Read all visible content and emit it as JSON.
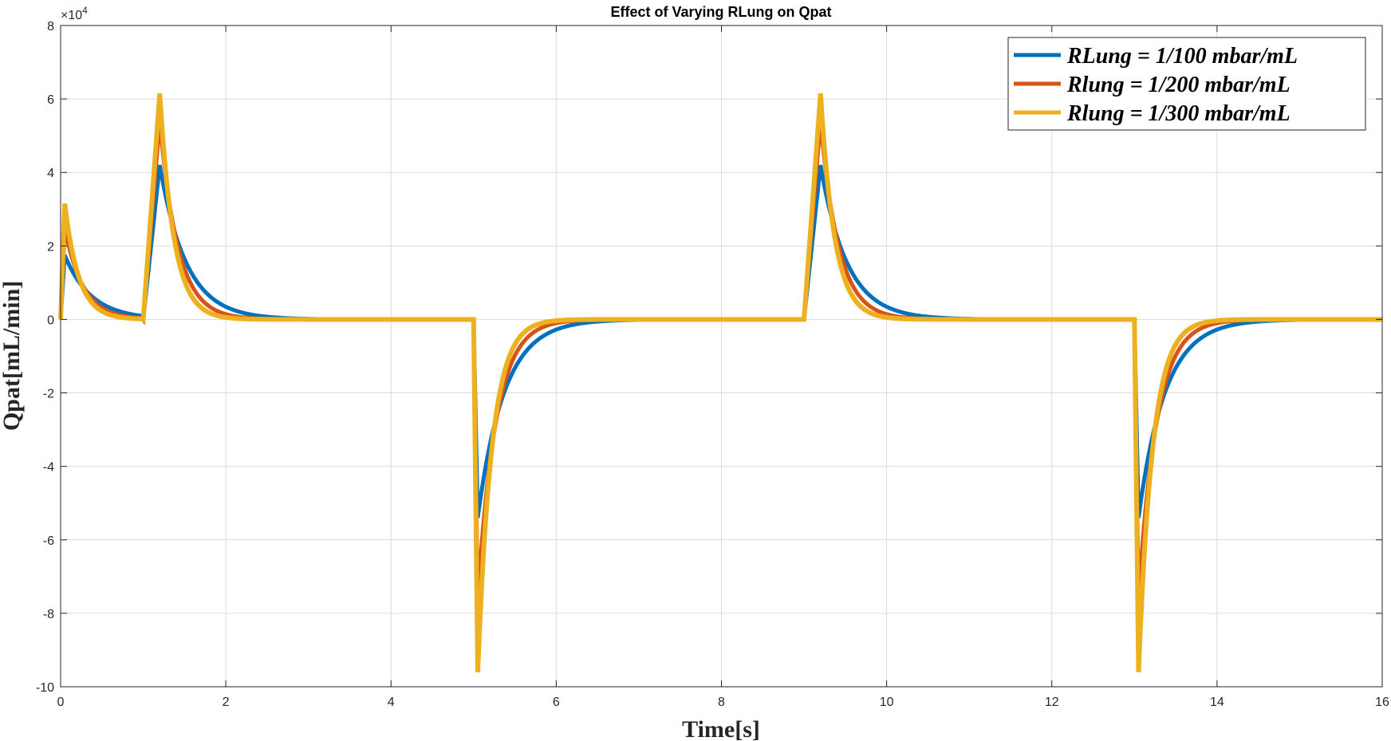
{
  "chart_data": {
    "type": "line",
    "title": "Effect of Varying RLung on Qpat",
    "xlabel": "Time[s]",
    "ylabel": "Qpat[mL/min]",
    "y_exponent_label": "×10",
    "y_exponent_power": "4",
    "xlim": [
      0,
      16
    ],
    "ylim": [
      -100000,
      80000
    ],
    "x_ticks": [
      "0",
      "2",
      "4",
      "6",
      "8",
      "10",
      "12",
      "14",
      "16"
    ],
    "x_tick_values": [
      0,
      2,
      4,
      6,
      8,
      10,
      12,
      14,
      16
    ],
    "y_ticks": [
      "-10",
      "-8",
      "-6",
      "-4",
      "-2",
      "0",
      "2",
      "4",
      "6",
      "8"
    ],
    "y_tick_values": [
      -100000,
      -80000,
      -60000,
      -40000,
      -20000,
      0,
      20000,
      40000,
      60000,
      80000
    ],
    "grid": true,
    "legend_position": "top-right",
    "waveform": {
      "inspiratory_starts": [
        0,
        1,
        9
      ],
      "inspiratory_peak_times": [
        0.05,
        1.2,
        9.2
      ],
      "inspiratory_end_times": [
        1,
        5,
        13
      ],
      "expiratory_starts": [
        5,
        13
      ],
      "expiratory_peak_times": [
        5.05,
        13.05
      ]
    },
    "series": [
      {
        "name": "RLung = 1/100 mbar/mL",
        "color": "#0072BD",
        "first_peak": 17500,
        "inspiratory_peak": 42000,
        "expiratory_peak": -54000,
        "time_constant": 0.32
      },
      {
        "name": "Rlung = 1/200 mbar/mL",
        "color": "#D95319",
        "first_peak": 25000,
        "inspiratory_peak": 54000,
        "expiratory_peak": -76000,
        "time_constant": 0.22
      },
      {
        "name": "Rlung = 1/300 mbar/mL",
        "color": "#EDB120",
        "first_peak": 31500,
        "inspiratory_peak": 61500,
        "expiratory_peak": -96000,
        "time_constant": 0.17
      }
    ]
  }
}
